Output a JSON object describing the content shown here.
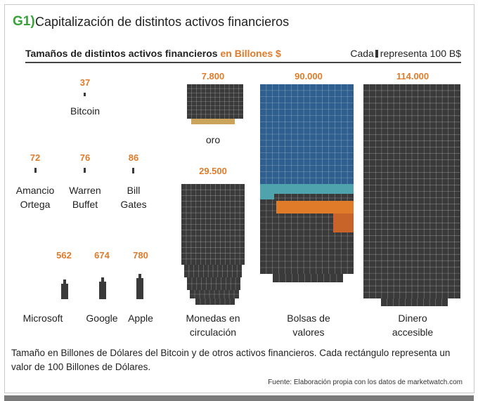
{
  "header": {
    "badge": "G1)",
    "title": "Capitalización de distintos activos financieros"
  },
  "subheader": {
    "text": "Tamaños de distintos activos financieros",
    "accent": "en Billones $",
    "legend_prefix": "Cada",
    "legend_suffix": "representa 100 B$"
  },
  "chart_data": {
    "type": "unit",
    "unit_value": 100,
    "unit_label": "100 B$",
    "items": [
      {
        "name": "Bitcoin",
        "value_label": "37",
        "value": 37,
        "color": "#3a3a3a"
      },
      {
        "name": "Amancio\nOrtega",
        "value_label": "72",
        "value": 72,
        "color": "#3a3a3a"
      },
      {
        "name": "Warren\nBuffet",
        "value_label": "76",
        "value": 76,
        "color": "#3a3a3a"
      },
      {
        "name": "Bill\nGates",
        "value_label": "86",
        "value": 86,
        "color": "#3a3a3a"
      },
      {
        "name": "Microsoft",
        "value_label": "562",
        "value": 562,
        "color": "#3a3a3a"
      },
      {
        "name": "Google",
        "value_label": "674",
        "value": 674,
        "color": "#3a3a3a"
      },
      {
        "name": "Apple",
        "value_label": "780",
        "value": 780,
        "color": "#3a3a3a"
      },
      {
        "name": "oro",
        "value_label": "7.800",
        "value": 7800,
        "color": "#3a3a3a",
        "accent_color": "#c9a45a"
      },
      {
        "name": "Monedas en\ncirculación",
        "value_label": "29.500",
        "value": 29500,
        "color": "#3a3a3a"
      },
      {
        "name": "Bolsas de\nvalores",
        "value_label": "90.000",
        "value": 90000,
        "color": "#3a3a3a",
        "segment_colors": [
          "#2e5f8e",
          "#4fa3ad",
          "#e07b2a",
          "#c8632a",
          "#3a3a3a"
        ]
      },
      {
        "name": "Dinero\naccesible",
        "value_label": "114.000",
        "value": 114000,
        "color": "#3a3a3a"
      }
    ]
  },
  "caption": "Tamaño en Billones de Dólares del Bitcoin y de otros activos financieros. Cada rectángulo representa un valor de 100 Billones de Dólares.",
  "source": "Fuente: Elaboración propia con los datos de marketwatch.com"
}
